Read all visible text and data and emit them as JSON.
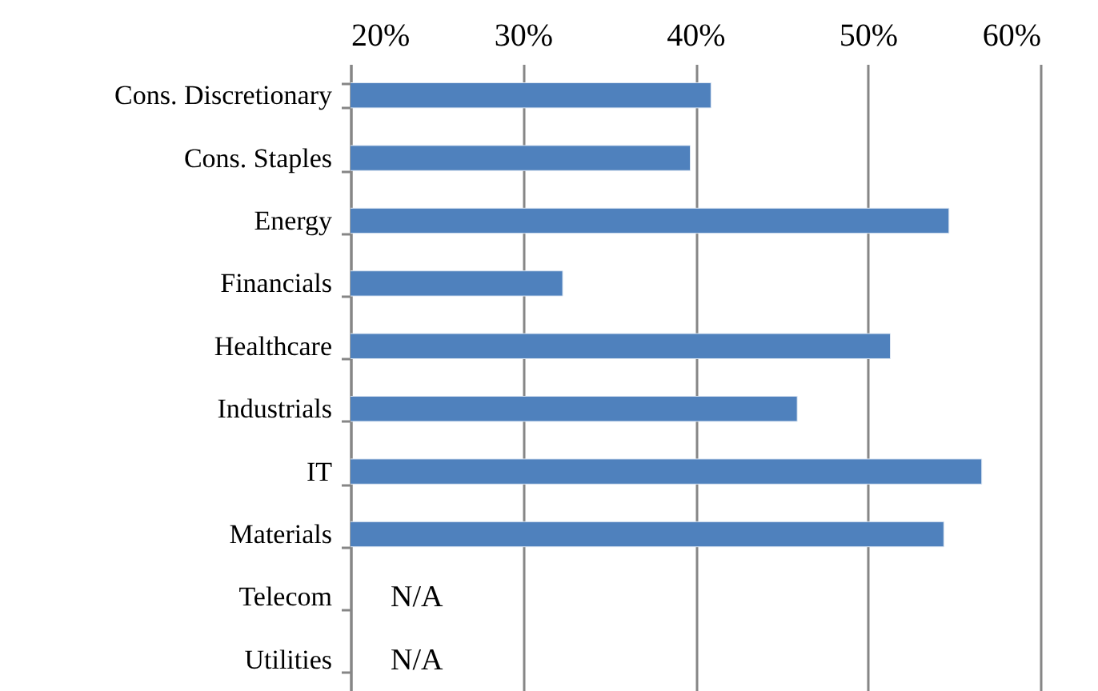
{
  "chart_data": {
    "type": "bar",
    "orientation": "horizontal",
    "categories": [
      "Cons. Discretionary",
      "Cons. Staples",
      "Energy",
      "Financials",
      "Healthcare",
      "Industrials",
      "IT",
      "Materials",
      "Telecom",
      "Utilities"
    ],
    "values": [
      40.9,
      39.7,
      54.7,
      32.3,
      51.3,
      45.9,
      56.6,
      54.4,
      null,
      null
    ],
    "color": "#4f81bd",
    "xlim": [
      20,
      60
    ],
    "xticks": [
      {
        "value": 20,
        "label": "20%"
      },
      {
        "value": 30,
        "label": "30%"
      },
      {
        "value": 40,
        "label": "40%"
      },
      {
        "value": 50,
        "label": "50%"
      },
      {
        "value": 60,
        "label": "60%"
      }
    ],
    "grid": "x",
    "annotations": [
      "N/A",
      "N/A"
    ]
  }
}
